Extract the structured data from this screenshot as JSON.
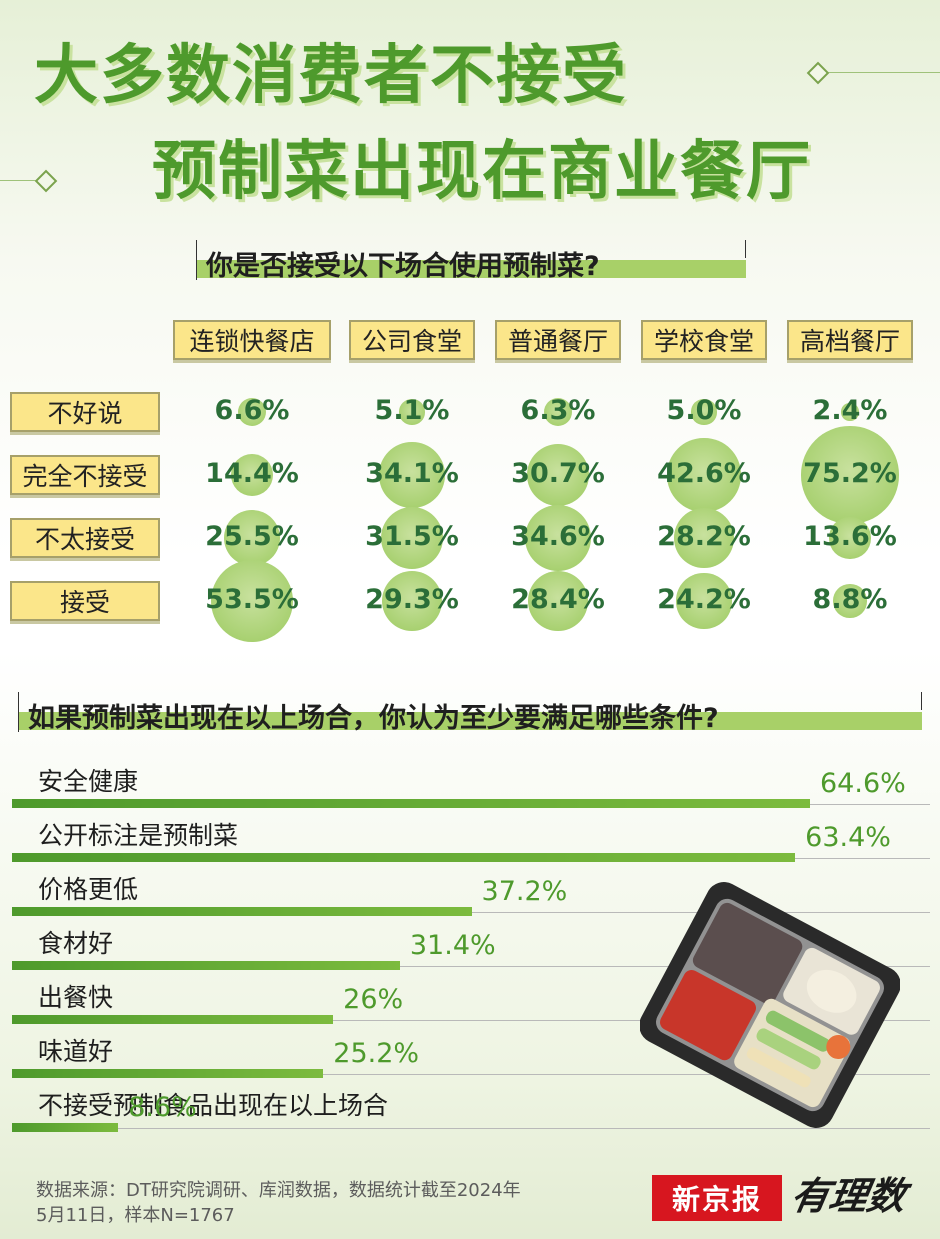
{
  "title": {
    "line1": "大多数消费者不接受",
    "line2": "预制菜出现在商业餐厅"
  },
  "colors": {
    "brand_green": "#4e9a2c",
    "bubble": "#a9d172",
    "chip": "#fbe68a",
    "value_text": "#2b6e38",
    "logo_red": "#d7161f"
  },
  "chart_data": [
    {
      "type": "bubble-matrix",
      "question": "你是否接受以下场合使用预制菜?",
      "categories": [
        "连锁快餐店",
        "公司食堂",
        "普通餐厅",
        "学校食堂",
        "高档餐厅"
      ],
      "series": [
        {
          "name": "不好说",
          "values": [
            6.6,
            5.1,
            6.3,
            5.0,
            2.4
          ],
          "labels": [
            "6.6%",
            "5.1%",
            "6.3%",
            "5.0%",
            "2.4%"
          ]
        },
        {
          "name": "完全不接受",
          "values": [
            14.4,
            34.1,
            30.7,
            42.6,
            75.2
          ],
          "labels": [
            "14.4%",
            "34.1%",
            "30.7%",
            "42.6%",
            "75.2%"
          ]
        },
        {
          "name": "不太接受",
          "values": [
            25.5,
            31.5,
            34.6,
            28.2,
            13.6
          ],
          "labels": [
            "25.5%",
            "31.5%",
            "34.6%",
            "28.2%",
            "13.6%"
          ]
        },
        {
          "name": "接受",
          "values": [
            53.5,
            29.3,
            28.4,
            24.2,
            8.8
          ],
          "labels": [
            "53.5%",
            "29.3%",
            "28.4%",
            "24.2%",
            "8.8%"
          ]
        }
      ],
      "unit": "%"
    },
    {
      "type": "bar",
      "orientation": "horizontal",
      "question": "如果预制菜出现在以上场合，你认为至少要满足哪些条件?",
      "categories": [
        "安全健康",
        "公开标注是预制菜",
        "价格更低",
        "食材好",
        "出餐快",
        "味道好",
        "不接受预制食品出现在以上场合"
      ],
      "values": [
        64.6,
        63.4,
        37.2,
        31.4,
        26,
        25.2,
        8.6
      ],
      "labels": [
        "64.6%",
        "63.4%",
        "37.2%",
        "31.4%",
        "26%",
        "25.2%",
        "8.6%"
      ],
      "unit": "%",
      "xlim": [
        0,
        70
      ]
    }
  ],
  "footer": {
    "source_line1": "数据来源：DT研究院调研、库润数据，数据统计截至2024年",
    "source_line2": "5月11日，样本N=1767",
    "logo_xinjingbao": "新京报",
    "logo_youlishu": "有理数"
  }
}
